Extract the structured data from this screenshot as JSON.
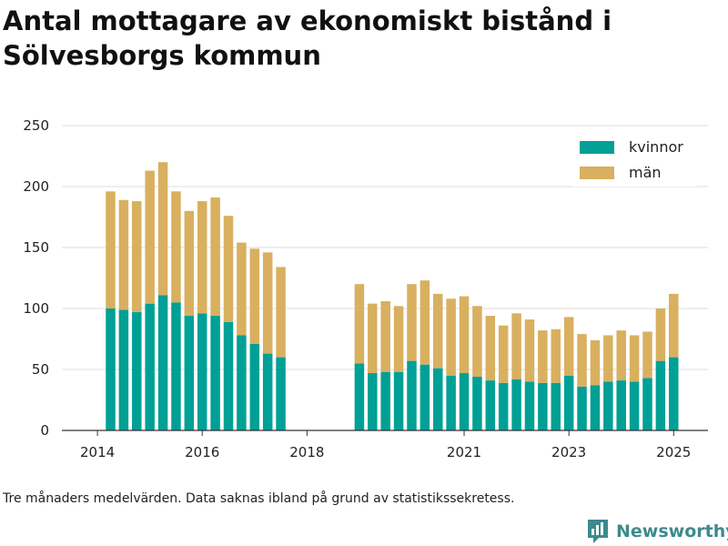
{
  "title": "Antal mottagare av ekonomiskt bistånd i Sölvesborgs kommun",
  "footnote": "Tre månaders medelvärden. Data saknas ibland på grund av statistikssekretess.",
  "brand": "Newsworthy",
  "colors": {
    "kvinnor": "#00a096",
    "man": "#d9b060",
    "grid": "#dddddd",
    "axis": "#333333",
    "text": "#222222",
    "brand": "#3d8a8c"
  },
  "chart_data": {
    "type": "bar",
    "stacked": true,
    "title": "Antal mottagare av ekonomiskt bistånd i Sölvesborgs kommun",
    "xlabel": "",
    "ylabel": "",
    "ylim": [
      0,
      250
    ],
    "y_ticks": [
      0,
      50,
      100,
      150,
      200,
      250
    ],
    "x_ticks": [
      "2014",
      "2016",
      "2018",
      "2021",
      "2023",
      "2025"
    ],
    "grid": true,
    "legend_position": "top-right",
    "categories": [
      "2014 Q2",
      "2014 Q3",
      "2014 Q4",
      "2015 Q1",
      "2015 Q2",
      "2015 Q3",
      "2015 Q4",
      "2016 Q1",
      "2016 Q2",
      "2016 Q3",
      "2016 Q4",
      "2017 Q1",
      "2017 Q2",
      "2017 Q3",
      "2017 Q4",
      "2018 Q1",
      "2018 Q2",
      "2018 Q3",
      "2018 Q4",
      "2019 Q1",
      "2019 Q2",
      "2019 Q3",
      "2019 Q4",
      "2020 Q1",
      "2020 Q2",
      "2020 Q3",
      "2020 Q4",
      "2021 Q1",
      "2021 Q2",
      "2021 Q3",
      "2021 Q4",
      "2022 Q1",
      "2022 Q2",
      "2022 Q3",
      "2022 Q4",
      "2023 Q1",
      "2023 Q2",
      "2023 Q3",
      "2023 Q4",
      "2024 Q1",
      "2024 Q2",
      "2024 Q3",
      "2024 Q4",
      "2025 Q1"
    ],
    "series": [
      {
        "name": "kvinnor",
        "values": [
          100,
          99,
          97,
          104,
          111,
          105,
          94,
          96,
          94,
          89,
          78,
          71,
          63,
          60,
          null,
          null,
          null,
          null,
          null,
          55,
          47,
          48,
          48,
          57,
          54,
          51,
          45,
          47,
          44,
          41,
          39,
          42,
          40,
          39,
          39,
          45,
          36,
          37,
          40,
          41,
          40,
          43,
          57,
          60
        ]
      },
      {
        "name": "män",
        "values": [
          96,
          90,
          91,
          109,
          109,
          91,
          86,
          92,
          97,
          87,
          76,
          78,
          83,
          74,
          null,
          null,
          null,
          null,
          null,
          65,
          57,
          58,
          54,
          63,
          69,
          61,
          63,
          63,
          58,
          53,
          47,
          54,
          51,
          43,
          44,
          48,
          43,
          37,
          38,
          41,
          38,
          38,
          43,
          52
        ]
      }
    ]
  }
}
